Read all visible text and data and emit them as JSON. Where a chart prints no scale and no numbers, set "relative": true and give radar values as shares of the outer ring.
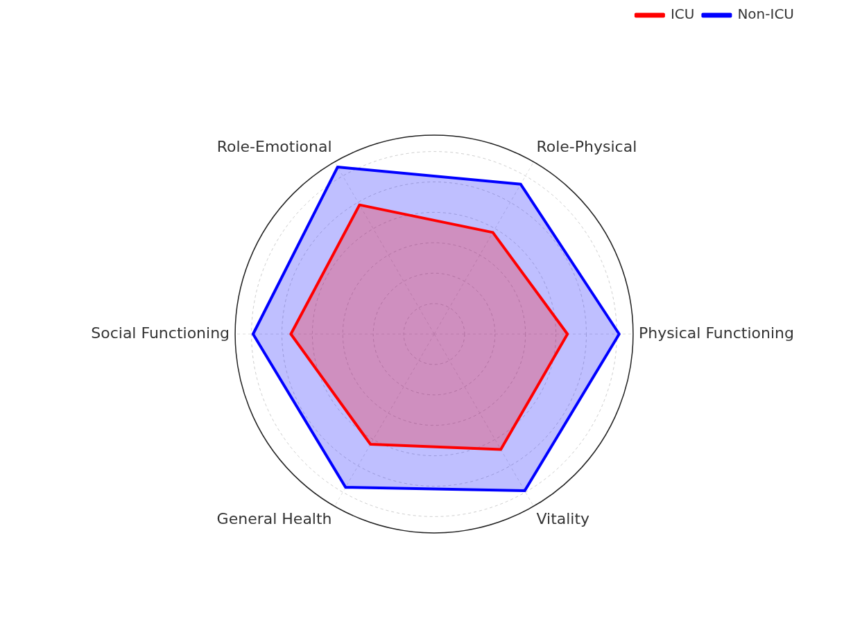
{
  "chart_data": {
    "type": "radar",
    "relative": true,
    "grid": true,
    "legend": "top right",
    "categories": [
      "Role-Physical",
      "Physical Functioning",
      "Vitality",
      "General Health",
      "Social Functioning",
      "Role-Emotional"
    ],
    "series": [
      {
        "name": "ICU",
        "color": "#ff0000",
        "values": [
          0.59,
          0.67,
          0.67,
          0.64,
          0.72,
          0.75
        ]
      },
      {
        "name": "Non-ICU",
        "color": "#0000ff",
        "values": [
          0.87,
          0.93,
          0.91,
          0.89,
          0.91,
          0.97
        ]
      }
    ]
  }
}
